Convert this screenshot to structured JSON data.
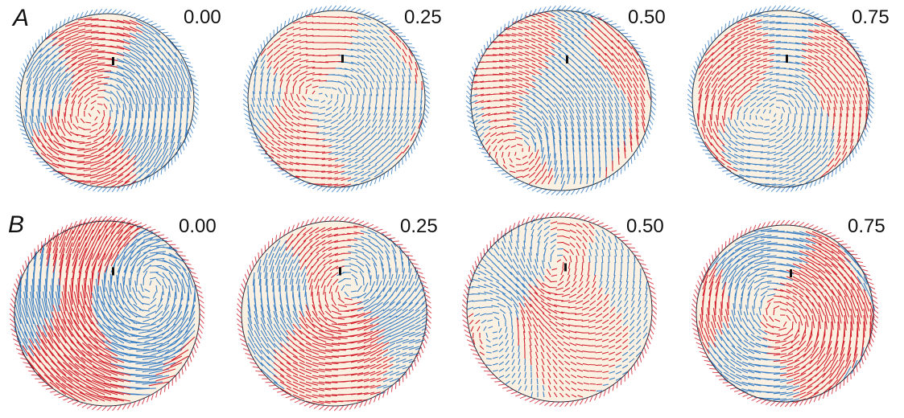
{
  "figure": {
    "colors": {
      "positive": "#d3222e",
      "negative": "#3a7fc4",
      "disk_fill": "#fbf1e3",
      "rim": "#1f2d3d",
      "marker": "#111111"
    },
    "rows": [
      {
        "letter": "A",
        "phases": [
          {
            "label": "0.00"
          },
          {
            "label": "0.25"
          },
          {
            "label": "0.50"
          },
          {
            "label": "0.75"
          }
        ]
      },
      {
        "letter": "B",
        "phases": [
          {
            "label": "0.00"
          },
          {
            "label": "0.25"
          },
          {
            "label": "0.50"
          },
          {
            "label": "0.75"
          }
        ]
      }
    ]
  }
}
